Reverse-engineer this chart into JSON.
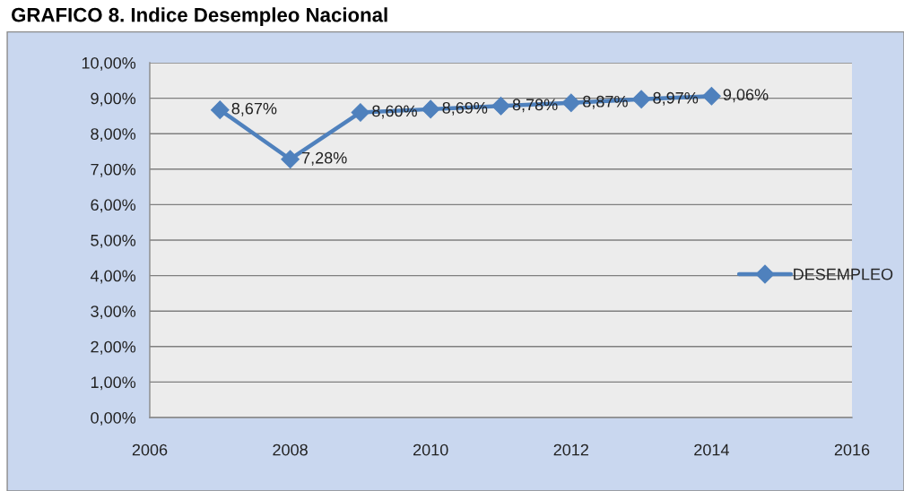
{
  "chart_data": {
    "type": "line",
    "title": "GRAFICO 8. Indice Desempleo Nacional",
    "x": [
      2007,
      2008,
      2009,
      2010,
      2011,
      2012,
      2013,
      2014
    ],
    "series": [
      {
        "name": "DESEMPLEO",
        "color": "#4f81bd",
        "values": [
          8.67,
          7.28,
          8.6,
          8.69,
          8.78,
          8.87,
          8.97,
          9.06
        ],
        "value_labels": [
          "8,67%",
          "7,28%",
          "8,60%",
          "8,69%",
          "8,78%",
          "8,87%",
          "8,97%",
          "9,06%"
        ]
      }
    ],
    "xlim": [
      2006,
      2016
    ],
    "xticks": [
      2006,
      2008,
      2010,
      2012,
      2014,
      2016
    ],
    "ylim": [
      0,
      10
    ],
    "yticks": [
      {
        "value": 0,
        "label": "0,00%"
      },
      {
        "value": 1,
        "label": "1,00%"
      },
      {
        "value": 2,
        "label": "2,00%"
      },
      {
        "value": 3,
        "label": "3,00%"
      },
      {
        "value": 4,
        "label": "4,00%"
      },
      {
        "value": 5,
        "label": "5,00%"
      },
      {
        "value": 6,
        "label": "6,00%"
      },
      {
        "value": 7,
        "label": "7,00%"
      },
      {
        "value": 8,
        "label": "8,00%"
      },
      {
        "value": 9,
        "label": "9,00%"
      },
      {
        "value": 10,
        "label": "10,00%"
      }
    ],
    "grid": "y",
    "legend": "right",
    "marker": "diamond",
    "line_style": "solid"
  }
}
